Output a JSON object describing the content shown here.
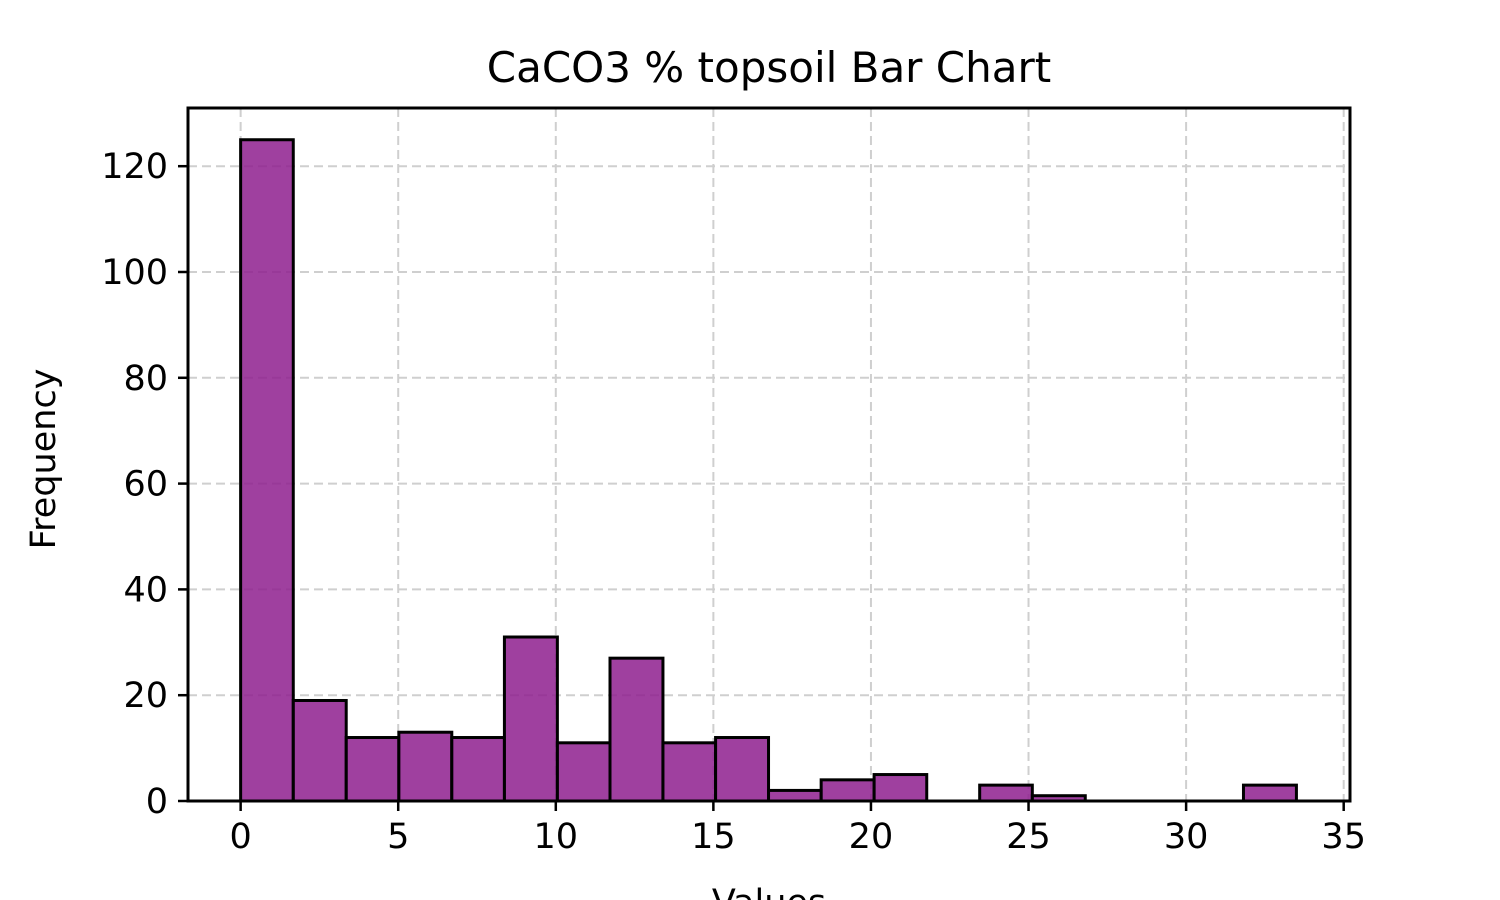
{
  "chart_data": {
    "type": "bar",
    "title": "CaCO3 % topsoil Bar Chart",
    "xlabel": "Values",
    "ylabel": "Frequency",
    "xlim": [
      -1.67,
      35.2
    ],
    "ylim": [
      0,
      131
    ],
    "xticks": [
      0,
      5,
      10,
      15,
      20,
      25,
      30,
      35
    ],
    "yticks": [
      0,
      20,
      40,
      60,
      80,
      100,
      120
    ],
    "grid": true,
    "bar_color": "#8e1e8e",
    "bar_edge_color": "#000000",
    "bins": [
      {
        "start": 0.0,
        "end": 1.67,
        "count": 125
      },
      {
        "start": 1.67,
        "end": 3.35,
        "count": 19
      },
      {
        "start": 3.35,
        "end": 5.02,
        "count": 12
      },
      {
        "start": 5.02,
        "end": 6.7,
        "count": 13
      },
      {
        "start": 6.7,
        "end": 8.37,
        "count": 12
      },
      {
        "start": 8.37,
        "end": 10.05,
        "count": 31
      },
      {
        "start": 10.05,
        "end": 11.72,
        "count": 11
      },
      {
        "start": 11.72,
        "end": 13.4,
        "count": 27
      },
      {
        "start": 13.4,
        "end": 15.07,
        "count": 11
      },
      {
        "start": 15.07,
        "end": 16.75,
        "count": 12
      },
      {
        "start": 16.75,
        "end": 18.42,
        "count": 2
      },
      {
        "start": 18.42,
        "end": 20.1,
        "count": 4
      },
      {
        "start": 20.1,
        "end": 21.77,
        "count": 5
      },
      {
        "start": 21.77,
        "end": 23.45,
        "count": 0
      },
      {
        "start": 23.45,
        "end": 25.12,
        "count": 3
      },
      {
        "start": 25.12,
        "end": 26.8,
        "count": 1
      },
      {
        "start": 26.8,
        "end": 28.47,
        "count": 0
      },
      {
        "start": 28.47,
        "end": 30.15,
        "count": 0
      },
      {
        "start": 30.15,
        "end": 31.82,
        "count": 0
      },
      {
        "start": 31.82,
        "end": 33.5,
        "count": 3
      }
    ]
  }
}
